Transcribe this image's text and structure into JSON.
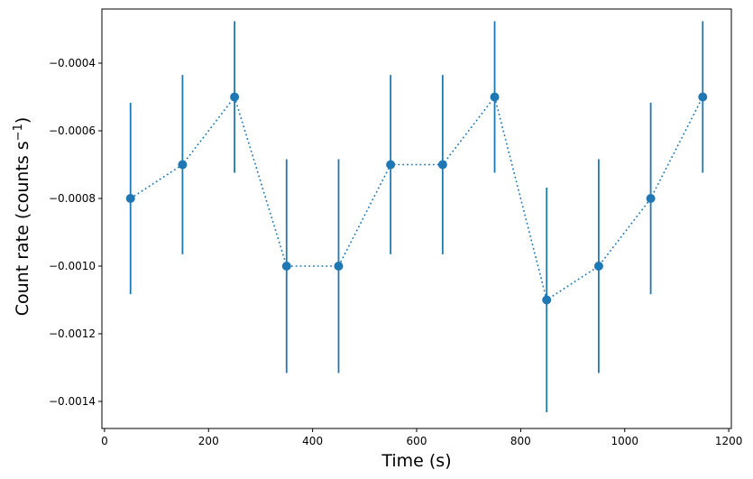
{
  "chart_data": {
    "type": "line",
    "title": "",
    "xlabel": "Time (s)",
    "ylabel_main": "Count rate (counts s",
    "ylabel_sup": "−1",
    "ylabel_close": ")",
    "xlim": [
      -5,
      1205
    ],
    "ylim": [
      -0.00148,
      -0.00024
    ],
    "xticks": [
      0,
      200,
      400,
      600,
      800,
      1000,
      1200
    ],
    "xtick_labels": [
      "0",
      "200",
      "400",
      "600",
      "800",
      "1000",
      "1200"
    ],
    "yticks": [
      -0.0014,
      -0.0012,
      -0.001,
      -0.0008,
      -0.0006,
      -0.0004
    ],
    "ytick_labels": [
      "−0.0014",
      "−0.0012",
      "−0.0010",
      "−0.0008",
      "−0.0006",
      "−0.0004"
    ],
    "grid": false,
    "line_style": "dotted",
    "color": "#1f77b4",
    "series": [
      {
        "x": [
          50,
          150,
          250,
          350,
          450,
          550,
          650,
          750,
          850,
          950,
          1050,
          1150
        ],
        "y": [
          -0.0008,
          -0.0007,
          -0.0005,
          -0.001,
          -0.001,
          -0.0007,
          -0.0007,
          -0.0005,
          -0.0011,
          -0.001,
          -0.0008,
          -0.0005
        ],
        "yerr": [
          0.000283,
          0.000265,
          0.000224,
          0.000316,
          0.000316,
          0.000265,
          0.000265,
          0.000224,
          0.000332,
          0.000316,
          0.000283,
          0.000224
        ]
      }
    ]
  }
}
